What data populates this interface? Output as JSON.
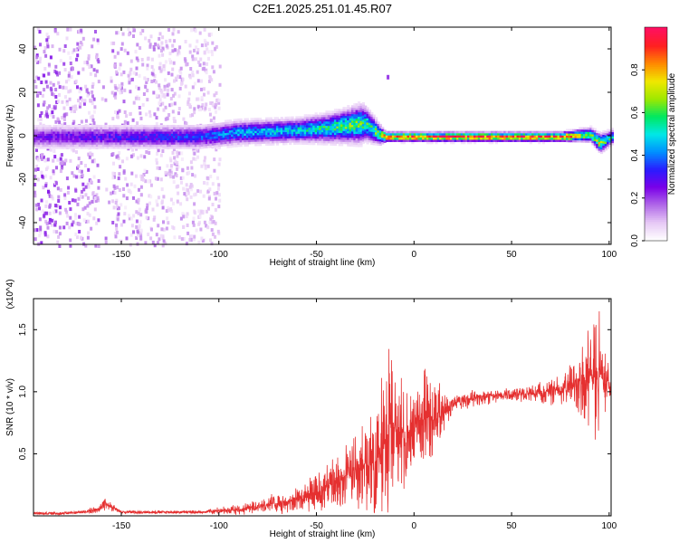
{
  "title": "C2E1.2025.251.01.45.R07",
  "colors": {
    "signal": "#e53030",
    "spectrogram_ramp": [
      "#ffffff",
      "#e6c8f5",
      "#b068e8",
      "#7a00e8",
      "#2a1cff",
      "#0090ff",
      "#00e8e8",
      "#00e860",
      "#9ee800",
      "#f0e800",
      "#ff8a00",
      "#ff2020",
      "#ff1060"
    ]
  },
  "chart_data": [
    {
      "type": "heatmap",
      "title": "C2E1.2025.251.01.45.R07",
      "xlabel": "Height of straight line (km)",
      "ylabel": "Frequency (Hz)",
      "xlim": [
        -195,
        101
      ],
      "ylim": [
        -50,
        50
      ],
      "xticks": [
        -150,
        -100,
        -50,
        0,
        50,
        100
      ],
      "yticks": [
        -40,
        -20,
        0,
        20,
        40
      ],
      "grid": false,
      "colorbar": {
        "label": "Normalized spectral amplitude",
        "range": [
          0,
          1
        ],
        "ticks": [
          "0.0",
          "0.2",
          "0.4",
          "0.6",
          "0.8"
        ]
      },
      "band_ridge": {
        "x": [
          -195,
          -150,
          -110,
          -90,
          -60,
          -45,
          -35,
          -28,
          -25,
          -18,
          -15,
          0,
          25,
          50,
          75,
          90,
          95,
          101
        ],
        "center_hz": [
          0,
          0,
          0,
          2,
          3,
          4,
          5,
          6,
          6,
          1,
          0,
          0,
          0,
          0,
          0,
          1,
          -3,
          0
        ],
        "half_width_hz": [
          5,
          5,
          5,
          5,
          5,
          6,
          7,
          8,
          7,
          4,
          2,
          2,
          2,
          2,
          2,
          3,
          4,
          3
        ],
        "peak_amplitude": [
          0.25,
          0.3,
          0.35,
          0.45,
          0.5,
          0.55,
          0.6,
          0.6,
          0.55,
          0.65,
          0.95,
          0.95,
          0.95,
          0.95,
          0.95,
          0.6,
          0.7,
          0.5
        ]
      },
      "background_scatter_x_range": [
        -195,
        -100
      ]
    },
    {
      "type": "line",
      "xlabel": "Height of straight line (km)",
      "ylabel": "SNR (10 * v/v)",
      "y_scale_label": "(x10^4)",
      "xlim": [
        -195,
        101
      ],
      "ylim": [
        0,
        1.75
      ],
      "xticks": [
        -150,
        -100,
        -50,
        0,
        50,
        100
      ],
      "yticks": [
        "0.5",
        "1.0",
        "1.5"
      ],
      "grid": false,
      "series": [
        {
          "x": [
            -195,
            -180,
            -170,
            -162,
            -158,
            -150,
            -130,
            -110,
            -100,
            -90,
            -80,
            -70,
            -60,
            -50,
            -40,
            -30,
            -25,
            -20,
            -15,
            -12,
            -10,
            -5,
            0,
            5,
            10,
            15,
            20,
            25,
            30,
            40,
            50,
            60,
            70,
            80,
            85,
            90,
            95,
            100,
            101
          ],
          "y": [
            0.02,
            0.02,
            0.03,
            0.05,
            0.1,
            0.03,
            0.03,
            0.03,
            0.04,
            0.05,
            0.08,
            0.1,
            0.13,
            0.18,
            0.28,
            0.35,
            0.4,
            0.45,
            0.6,
            0.78,
            0.7,
            0.65,
            0.72,
            0.8,
            0.78,
            0.85,
            0.9,
            0.93,
            0.95,
            0.96,
            0.98,
            0.99,
            1.0,
            1.05,
            1.08,
            1.1,
            1.15,
            1.05,
            1.0
          ],
          "spike_envelope": [
            0,
            0,
            0,
            0.03,
            0.05,
            0,
            0,
            0,
            0.02,
            0.04,
            0.05,
            0.08,
            0.1,
            0.15,
            0.2,
            0.3,
            0.35,
            0.45,
            0.65,
            0.7,
            0.5,
            0.45,
            0.25,
            0.4,
            0.3,
            0.2,
            0.05,
            0.05,
            0.04,
            0.03,
            0.03,
            0.04,
            0.08,
            0.15,
            0.25,
            0.45,
            0.55,
            0.2,
            0.1
          ]
        }
      ]
    }
  ]
}
